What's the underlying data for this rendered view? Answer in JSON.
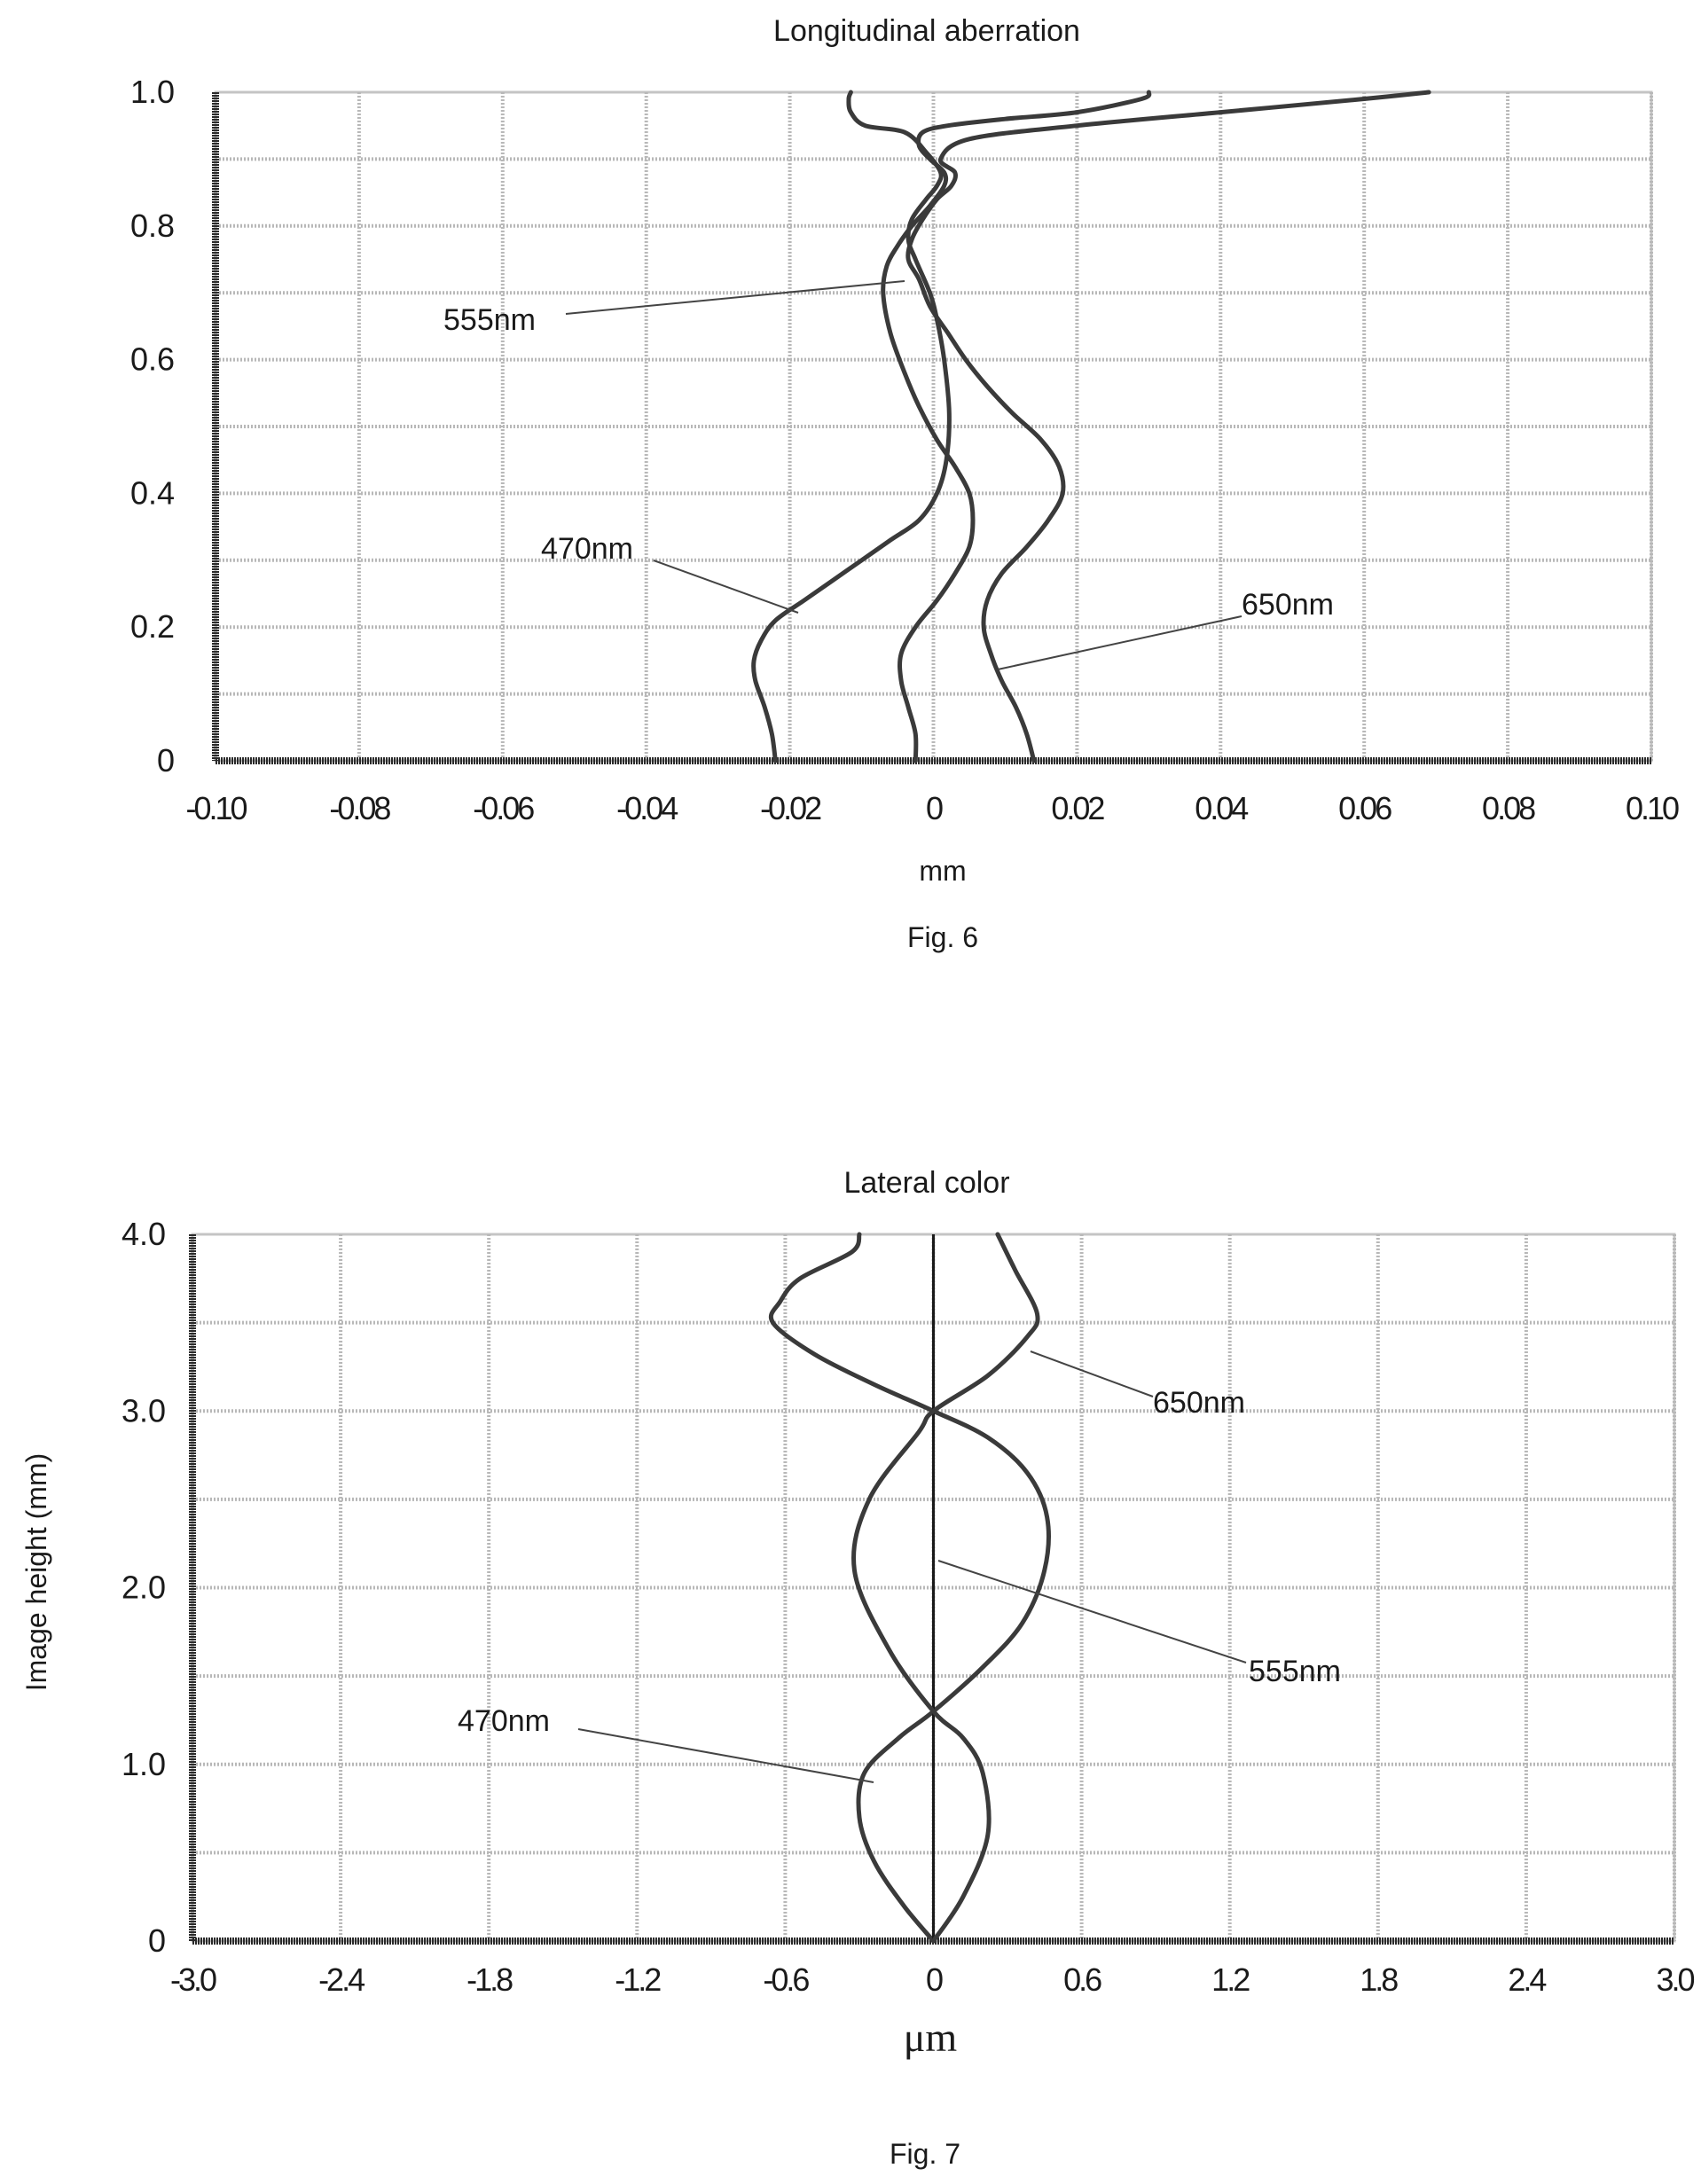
{
  "chart_data": [
    {
      "type": "line",
      "title": "Longitudinal aberration",
      "xlabel": "mm",
      "ylabel": "",
      "caption": "Fig. 6",
      "xlim": [
        -0.1,
        0.1
      ],
      "ylim": [
        0,
        1.0
      ],
      "x_ticks": [
        -0.1,
        -0.08,
        -0.06,
        -0.04,
        -0.02,
        0,
        0.02,
        0.04,
        0.06,
        0.08,
        0.1
      ],
      "x_tick_labels": [
        "-0.10",
        "-0.08",
        "-0.06",
        "-0.04",
        "-0.02",
        "0",
        "0.02",
        "0.04",
        "0.06",
        "0.08",
        "0.10"
      ],
      "y_ticks": [
        0,
        0.2,
        0.4,
        0.6,
        0.8,
        1.0
      ],
      "y_tick_labels": [
        "0",
        "0.2",
        "0.4",
        "0.6",
        "0.8",
        "1.0"
      ],
      "grid": true,
      "series": [
        {
          "name": "470nm",
          "x": [
            -0.022,
            -0.0225,
            -0.0235,
            -0.0248,
            -0.025,
            -0.024,
            -0.022,
            -0.018,
            -0.014,
            -0.01,
            -0.006,
            -0.002,
            0.0005,
            0.0018,
            0.0022,
            0.0015,
            0.0005,
            -0.0005,
            -0.0025,
            -0.0035,
            -0.003,
            -0.001,
            0.0005,
            0.001,
            -0.001,
            -0.004,
            -0.0095,
            -0.0115,
            -0.0118,
            -0.0115
          ],
          "y": [
            0.0,
            0.04,
            0.08,
            0.12,
            0.15,
            0.18,
            0.21,
            0.24,
            0.27,
            0.3,
            0.33,
            0.36,
            0.4,
            0.45,
            0.52,
            0.6,
            0.66,
            0.7,
            0.75,
            0.78,
            0.81,
            0.84,
            0.86,
            0.88,
            0.91,
            0.94,
            0.95,
            0.97,
            0.99,
            1.0
          ]
        },
        {
          "name": "555nm",
          "x": [
            -0.0025,
            -0.0025,
            -0.0035,
            -0.0045,
            -0.0045,
            -0.0025,
            0.0005,
            0.003,
            0.005,
            0.0055,
            0.005,
            0.003,
            0.0005,
            -0.002,
            -0.004,
            -0.006,
            -0.007,
            -0.0065,
            -0.005,
            -0.003,
            -0.0005,
            0.0015,
            0.0015,
            -0.0005,
            -0.002,
            -0.0015,
            0.002,
            0.01,
            0.02,
            0.029,
            0.03
          ],
          "y": [
            0.0,
            0.04,
            0.08,
            0.12,
            0.16,
            0.2,
            0.24,
            0.28,
            0.32,
            0.36,
            0.4,
            0.44,
            0.48,
            0.53,
            0.58,
            0.64,
            0.7,
            0.74,
            0.77,
            0.8,
            0.83,
            0.86,
            0.88,
            0.9,
            0.92,
            0.94,
            0.95,
            0.96,
            0.97,
            0.99,
            1.0
          ]
        },
        {
          "name": "650nm",
          "x": [
            0.014,
            0.013,
            0.0115,
            0.0095,
            0.008,
            0.007,
            0.0075,
            0.0095,
            0.013,
            0.016,
            0.018,
            0.0175,
            0.015,
            0.011,
            0.0075,
            0.0045,
            0.002,
            -0.0005,
            -0.002,
            -0.0035,
            -0.003,
            -0.0015,
            0.0005,
            0.0025,
            0.003,
            0.001,
            0.005,
            0.02,
            0.04,
            0.06,
            0.069
          ],
          "y": [
            0.0,
            0.04,
            0.08,
            0.12,
            0.16,
            0.2,
            0.24,
            0.28,
            0.32,
            0.36,
            0.4,
            0.44,
            0.48,
            0.52,
            0.56,
            0.6,
            0.64,
            0.68,
            0.72,
            0.75,
            0.78,
            0.81,
            0.84,
            0.86,
            0.88,
            0.9,
            0.93,
            0.95,
            0.97,
            0.99,
            1.0
          ]
        }
      ]
    },
    {
      "type": "line",
      "title": "Lateral color",
      "xlabel": "μm",
      "ylabel": "Image height (mm)",
      "caption": "Fig. 7",
      "xlim": [
        -3.0,
        3.0
      ],
      "ylim": [
        0,
        4.0
      ],
      "x_ticks": [
        -3.0,
        -2.4,
        -1.8,
        -1.2,
        -0.6,
        0,
        0.6,
        1.2,
        1.8,
        2.4,
        3.0
      ],
      "x_tick_labels": [
        "-3.0",
        "-2.4",
        "-1.8",
        "-1.2",
        "-0.6",
        "0",
        "0.6",
        "1.2",
        "1.8",
        "2.4",
        "3.0"
      ],
      "y_ticks": [
        0,
        1.0,
        2.0,
        3.0,
        4.0
      ],
      "y_tick_labels": [
        "0",
        "1.0",
        "2.0",
        "3.0",
        "4.0"
      ],
      "grid": true,
      "series": [
        {
          "name": "470nm",
          "x": [
            0.0,
            -0.12,
            -0.24,
            -0.3,
            -0.28,
            -0.14,
            0.0,
            0.2,
            0.36,
            0.45,
            0.46,
            0.38,
            0.22,
            0.0,
            -0.24,
            -0.48,
            -0.65,
            -0.62,
            -0.54,
            -0.33,
            -0.3
          ],
          "y": [
            0.0,
            0.2,
            0.45,
            0.7,
            0.95,
            1.15,
            1.3,
            1.55,
            1.8,
            2.1,
            2.4,
            2.65,
            2.85,
            3.0,
            3.15,
            3.32,
            3.5,
            3.62,
            3.75,
            3.9,
            4.0
          ]
        },
        {
          "name": "555nm",
          "x": [
            0.0,
            0.0,
            0.0,
            0.0,
            0.0
          ],
          "y": [
            0.0,
            1.0,
            2.0,
            3.0,
            4.0
          ]
        },
        {
          "name": "650nm",
          "x": [
            0.0,
            0.12,
            0.22,
            0.2,
            0.12,
            0.0,
            -0.18,
            -0.32,
            -0.26,
            -0.06,
            0.0,
            0.22,
            0.38,
            0.42,
            0.33,
            0.26
          ],
          "y": [
            0.0,
            0.25,
            0.6,
            0.95,
            1.15,
            1.3,
            1.65,
            2.1,
            2.5,
            2.88,
            3.0,
            3.2,
            3.42,
            3.55,
            3.8,
            4.0
          ]
        }
      ]
    }
  ]
}
